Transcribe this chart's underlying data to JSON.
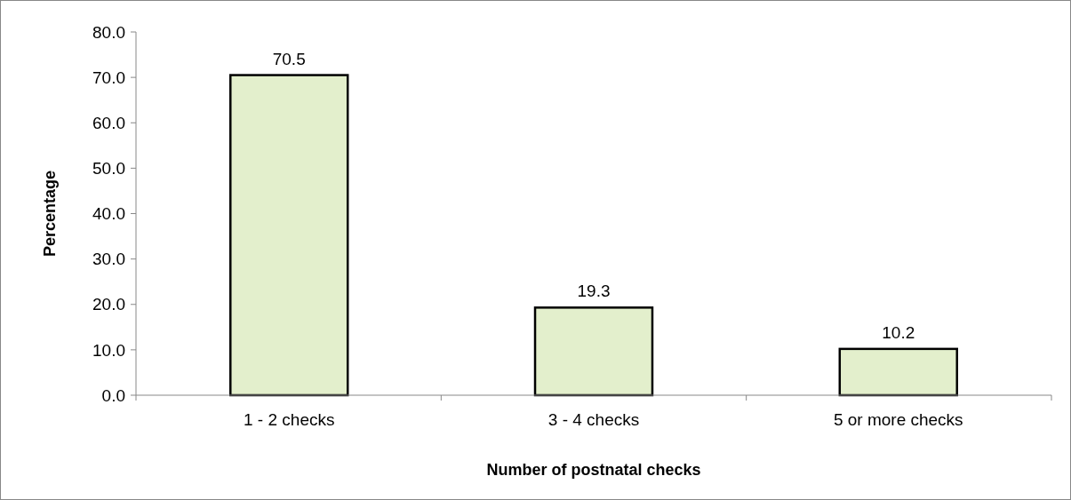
{
  "chart_data": {
    "type": "bar",
    "xlabel": "Number of postnatal checks",
    "ylabel": "Percentage",
    "categories": [
      "1 - 2 checks",
      "3 - 4 checks",
      "5 or more checks"
    ],
    "values": [
      70.5,
      19.3,
      10.2
    ],
    "color": "#e3efcc",
    "data_labels": true,
    "grid": false,
    "ylim": [
      0,
      80
    ],
    "yticks": [
      {
        "value": 0,
        "label": "0.0"
      },
      {
        "value": 10,
        "label": "10.0"
      },
      {
        "value": 20,
        "label": "20.0"
      },
      {
        "value": 30,
        "label": "30.0"
      },
      {
        "value": 40,
        "label": "40.0"
      },
      {
        "value": 50,
        "label": "50.0"
      },
      {
        "value": 60,
        "label": "60.0"
      },
      {
        "value": 70,
        "label": "70.0"
      },
      {
        "value": 80,
        "label": "80.0"
      }
    ]
  }
}
